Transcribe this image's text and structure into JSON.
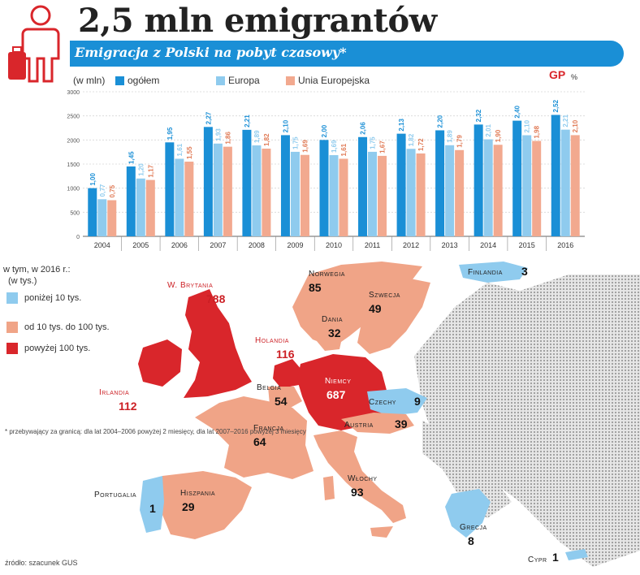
{
  "header": {
    "title": "2,5 mln emigrantów",
    "subtitle": "Emigracja z Polski na pobyt czasowy*",
    "logo": "GP",
    "logo_suffix": "%"
  },
  "legend": {
    "unit": "(w mln)",
    "items": [
      "ogółem",
      "Europa",
      "Unia Europejska"
    ]
  },
  "colors": {
    "ogolem": "#1a8fd6",
    "europa": "#8fcbee",
    "ue": "#f2a98f",
    "over100": "#d9262b",
    "between": "#f0a487",
    "under10": "#8fcbee",
    "bar_accent": "#1a8fd6",
    "grey_land": "#c9c9c9"
  },
  "chart_data": {
    "type": "bar",
    "categories": [
      "2004",
      "2005",
      "2006",
      "2007",
      "2008",
      "2009",
      "2010",
      "2011",
      "2012",
      "2013",
      "2014",
      "2015",
      "2016"
    ],
    "series": [
      {
        "name": "ogółem",
        "values": [
          1000,
          1450,
          1950,
          2270,
          2210,
          2100,
          2000,
          2060,
          2130,
          2200,
          2320,
          2400,
          2520
        ]
      },
      {
        "name": "Europa",
        "values": [
          770,
          1200,
          1610,
          1925,
          1887,
          1754,
          1685,
          1754,
          1816,
          1891,
          2013,
          2098,
          2214
        ]
      },
      {
        "name": "Unia Europejska",
        "values": [
          750,
          1170,
          1550,
          1860,
          1820,
          1690,
          1610,
          1670,
          1720,
          1790,
          1900,
          1980,
          2100
        ]
      }
    ],
    "value_labels": [
      [
        "1,00",
        "1,45",
        "1,95",
        "2,27",
        "2,21",
        "2,10",
        "2,00",
        "2,06",
        "2,13",
        "2,20",
        "2,32",
        "2,40",
        "2,52"
      ],
      [
        "0,77",
        "1,20",
        "1,61",
        "1,93",
        "1,89",
        "1,75",
        "1,69",
        "1,75",
        "1,82",
        "1,89",
        "2,01",
        "2,10",
        "2,21"
      ],
      [
        "0,75",
        "1,17",
        "1,55",
        "1,86",
        "1,82",
        "1,69",
        "1,61",
        "1,67",
        "1,72",
        "1,79",
        "1,90",
        "1,98",
        "2,10"
      ]
    ],
    "yticks": [
      "3000",
      "2500",
      "2000",
      "1500",
      "1000",
      "500",
      "0"
    ],
    "ylim": [
      0,
      3000
    ],
    "grid": true
  },
  "map": {
    "intro": "w tym, w 2016 r.:",
    "unit": "(w tys.)",
    "legend": [
      "poniżej 10 tys.",
      "od 10 tys. do 100 tys.",
      "powyżej 100 tys."
    ],
    "countries": [
      {
        "name": "W. Brytania",
        "value": "788"
      },
      {
        "name": "Norwegia",
        "value": "85"
      },
      {
        "name": "Finlandia",
        "value": "3"
      },
      {
        "name": "Szwecja",
        "value": "49"
      },
      {
        "name": "Dania",
        "value": "32"
      },
      {
        "name": "Holandia",
        "value": "116"
      },
      {
        "name": "Irlandia",
        "value": "112"
      },
      {
        "name": "Niemcy",
        "value": "687"
      },
      {
        "name": "Belgia",
        "value": "54"
      },
      {
        "name": "Czechy",
        "value": "9"
      },
      {
        "name": "Francja",
        "value": "64"
      },
      {
        "name": "Austria",
        "value": "39"
      },
      {
        "name": "Portugalia",
        "value": "1"
      },
      {
        "name": "Hiszpania",
        "value": "29"
      },
      {
        "name": "Włochy",
        "value": "93"
      },
      {
        "name": "Grecja",
        "value": "8"
      },
      {
        "name": "Cypr",
        "value": "1"
      }
    ],
    "footnote": "* przebywający za granicą: dla lat 2004–2006 powyżej 2 miesięcy, dla lat 2007–2016 powyżej 3 miesięcy",
    "source": "źródło: szacunek GUS"
  }
}
